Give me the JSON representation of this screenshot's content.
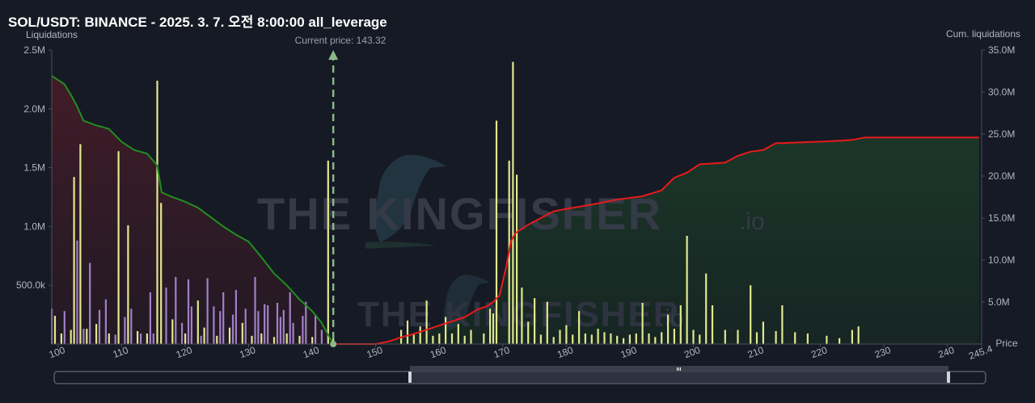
{
  "title": "SOL/USDT: BINANCE - 2025. 3. 7. 오전 8:00:00 all_leverage",
  "watermark": {
    "text": "THE KINGFISHER",
    "suffix": ".io"
  },
  "chart_data": {
    "type": "bar",
    "current_price_label": "Current price: 143.32",
    "current_price": 143.32,
    "left_axis": {
      "label": "Liquidations",
      "range": [
        0,
        2500000
      ],
      "ticks": [
        500000,
        1000000,
        1500000,
        2000000,
        2500000
      ],
      "tick_labels": [
        "500.0k",
        "1.0M",
        "1.5M",
        "2.0M",
        "2.5M"
      ]
    },
    "right_axis": {
      "label": "Cum. liquidations",
      "range": [
        0,
        35000000
      ],
      "ticks": [
        5000000,
        10000000,
        15000000,
        20000000,
        25000000,
        30000000,
        35000000
      ],
      "tick_labels": [
        "5.0M",
        "10.0M",
        "15.0M",
        "20.0M",
        "25.0M",
        "30.0M",
        "35.0M"
      ]
    },
    "x_axis": {
      "label": "Price",
      "range": [
        99,
        245.4
      ],
      "ticks": [
        100,
        110,
        120,
        130,
        140,
        150,
        160,
        170,
        180,
        190,
        200,
        210,
        220,
        230,
        240,
        245.4
      ],
      "tick_labels": [
        "100",
        "110",
        "120",
        "130",
        "140",
        "150",
        "160",
        "170",
        "180",
        "190",
        "200",
        "210",
        "220",
        "230",
        "240",
        "245.4"
      ]
    },
    "series": [
      {
        "type": "bar",
        "color": "#e2e88e",
        "points": [
          [
            99.5,
            240000
          ],
          [
            100.5,
            90000
          ],
          [
            102,
            120000
          ],
          [
            102.5,
            1420000
          ],
          [
            103.5,
            1700000
          ],
          [
            104.5,
            130000
          ],
          [
            106,
            170000
          ],
          [
            108,
            90000
          ],
          [
            109.5,
            1640000
          ],
          [
            111,
            1010000
          ],
          [
            112.5,
            110000
          ],
          [
            114,
            90000
          ],
          [
            115.6,
            2240000
          ],
          [
            116.2,
            1200000
          ],
          [
            118,
            210000
          ],
          [
            120,
            90000
          ],
          [
            122,
            370000
          ],
          [
            123,
            140000
          ],
          [
            125,
            70000
          ],
          [
            127,
            140000
          ],
          [
            129,
            180000
          ],
          [
            130.5,
            70000
          ],
          [
            132,
            90000
          ],
          [
            134,
            60000
          ],
          [
            136,
            90000
          ],
          [
            138,
            70000
          ],
          [
            140,
            60000
          ],
          [
            142.5,
            1560000
          ],
          [
            143.3,
            50000
          ],
          [
            154,
            120000
          ],
          [
            155,
            200000
          ],
          [
            156,
            90000
          ],
          [
            157,
            150000
          ],
          [
            158,
            370000
          ],
          [
            159,
            70000
          ],
          [
            160,
            90000
          ],
          [
            161,
            230000
          ],
          [
            162,
            90000
          ],
          [
            163,
            170000
          ],
          [
            164,
            70000
          ],
          [
            165,
            120000
          ],
          [
            167,
            90000
          ],
          [
            168,
            300000
          ],
          [
            168.5,
            260000
          ],
          [
            169,
            1900000
          ],
          [
            171,
            1560000
          ],
          [
            171.6,
            2400000
          ],
          [
            172.2,
            1440000
          ],
          [
            173,
            480000
          ],
          [
            174,
            190000
          ],
          [
            175,
            390000
          ],
          [
            176,
            80000
          ],
          [
            177,
            360000
          ],
          [
            178,
            60000
          ],
          [
            179,
            120000
          ],
          [
            180,
            160000
          ],
          [
            181,
            80000
          ],
          [
            182,
            280000
          ],
          [
            183,
            90000
          ],
          [
            184,
            80000
          ],
          [
            185,
            130000
          ],
          [
            186,
            100000
          ],
          [
            187,
            90000
          ],
          [
            188,
            70000
          ],
          [
            189,
            50000
          ],
          [
            190,
            80000
          ],
          [
            191,
            90000
          ],
          [
            192,
            350000
          ],
          [
            193,
            90000
          ],
          [
            194,
            60000
          ],
          [
            195,
            100000
          ],
          [
            196,
            250000
          ],
          [
            197,
            130000
          ],
          [
            198,
            330000
          ],
          [
            199,
            920000
          ],
          [
            200,
            120000
          ],
          [
            201,
            80000
          ],
          [
            202,
            600000
          ],
          [
            203,
            330000
          ],
          [
            205,
            120000
          ],
          [
            207,
            120000
          ],
          [
            209,
            500000
          ],
          [
            210,
            100000
          ],
          [
            211,
            190000
          ],
          [
            213,
            110000
          ],
          [
            214,
            330000
          ],
          [
            216,
            100000
          ],
          [
            218,
            90000
          ],
          [
            221,
            70000
          ],
          [
            223,
            50000
          ],
          [
            225,
            120000
          ],
          [
            226,
            150000
          ]
        ]
      },
      {
        "type": "bar",
        "color": "#a37fc7",
        "points": [
          [
            99,
            300000
          ],
          [
            101,
            280000
          ],
          [
            103,
            880000
          ],
          [
            104,
            130000
          ],
          [
            105,
            690000
          ],
          [
            106.5,
            290000
          ],
          [
            107.5,
            380000
          ],
          [
            109,
            80000
          ],
          [
            110.5,
            230000
          ],
          [
            111.5,
            300000
          ],
          [
            113,
            90000
          ],
          [
            114.5,
            440000
          ],
          [
            115,
            90000
          ],
          [
            117,
            480000
          ],
          [
            118.5,
            570000
          ],
          [
            119.5,
            180000
          ],
          [
            120.5,
            550000
          ],
          [
            121,
            320000
          ],
          [
            122.5,
            70000
          ],
          [
            123.5,
            560000
          ],
          [
            124.5,
            320000
          ],
          [
            125.5,
            280000
          ],
          [
            126,
            440000
          ],
          [
            127.5,
            250000
          ],
          [
            128,
            460000
          ],
          [
            129.5,
            300000
          ],
          [
            131,
            570000
          ],
          [
            131.5,
            280000
          ],
          [
            132.5,
            340000
          ],
          [
            133,
            330000
          ],
          [
            134.5,
            350000
          ],
          [
            135,
            230000
          ],
          [
            135.5,
            290000
          ],
          [
            136.5,
            440000
          ],
          [
            137,
            180000
          ],
          [
            138.5,
            240000
          ],
          [
            139,
            360000
          ],
          [
            140.5,
            250000
          ],
          [
            141.5,
            120000
          ]
        ]
      },
      {
        "type": "line",
        "name": "cumulative-short",
        "color": "#1f8f1f",
        "points": [
          [
            99,
            2280000
          ],
          [
            101,
            2210000
          ],
          [
            102,
            2120000
          ],
          [
            103,
            2020000
          ],
          [
            104,
            1900000
          ],
          [
            106,
            1860000
          ],
          [
            108,
            1830000
          ],
          [
            110,
            1720000
          ],
          [
            112,
            1650000
          ],
          [
            114,
            1620000
          ],
          [
            115.6,
            1520000
          ],
          [
            116.3,
            1290000
          ],
          [
            118,
            1250000
          ],
          [
            120,
            1210000
          ],
          [
            122,
            1160000
          ],
          [
            124,
            1080000
          ],
          [
            126,
            1000000
          ],
          [
            128,
            930000
          ],
          [
            130,
            870000
          ],
          [
            132,
            740000
          ],
          [
            134,
            600000
          ],
          [
            136,
            500000
          ],
          [
            138,
            380000
          ],
          [
            140,
            280000
          ],
          [
            141.5,
            180000
          ],
          [
            142.5,
            80000
          ],
          [
            143.3,
            0
          ]
        ]
      },
      {
        "type": "line",
        "name": "cumulative-long",
        "color": "#e81a1a",
        "points": [
          [
            143.3,
            0
          ],
          [
            150,
            0
          ],
          [
            152,
            300000
          ],
          [
            154,
            800000
          ],
          [
            156,
            1200000
          ],
          [
            158,
            1700000
          ],
          [
            160,
            2200000
          ],
          [
            162,
            2700000
          ],
          [
            164,
            3200000
          ],
          [
            166,
            4100000
          ],
          [
            167.5,
            4500000
          ],
          [
            168.5,
            5000000
          ],
          [
            169.5,
            5800000
          ],
          [
            170.5,
            9000000
          ],
          [
            171.3,
            12200000
          ],
          [
            172,
            13200000
          ],
          [
            174,
            14200000
          ],
          [
            176,
            15000000
          ],
          [
            178,
            15800000
          ],
          [
            180,
            16100000
          ],
          [
            184,
            16600000
          ],
          [
            188,
            17200000
          ],
          [
            192,
            17600000
          ],
          [
            195,
            18300000
          ],
          [
            197,
            19800000
          ],
          [
            199,
            20400000
          ],
          [
            201,
            21400000
          ],
          [
            205,
            21600000
          ],
          [
            207,
            22400000
          ],
          [
            209,
            22900000
          ],
          [
            211,
            23100000
          ],
          [
            213,
            23900000
          ],
          [
            215,
            23950000
          ],
          [
            220,
            24100000
          ],
          [
            223,
            24200000
          ],
          [
            225,
            24300000
          ],
          [
            227,
            24600000
          ],
          [
            230,
            24600000
          ],
          [
            245,
            24600000
          ]
        ]
      }
    ]
  }
}
